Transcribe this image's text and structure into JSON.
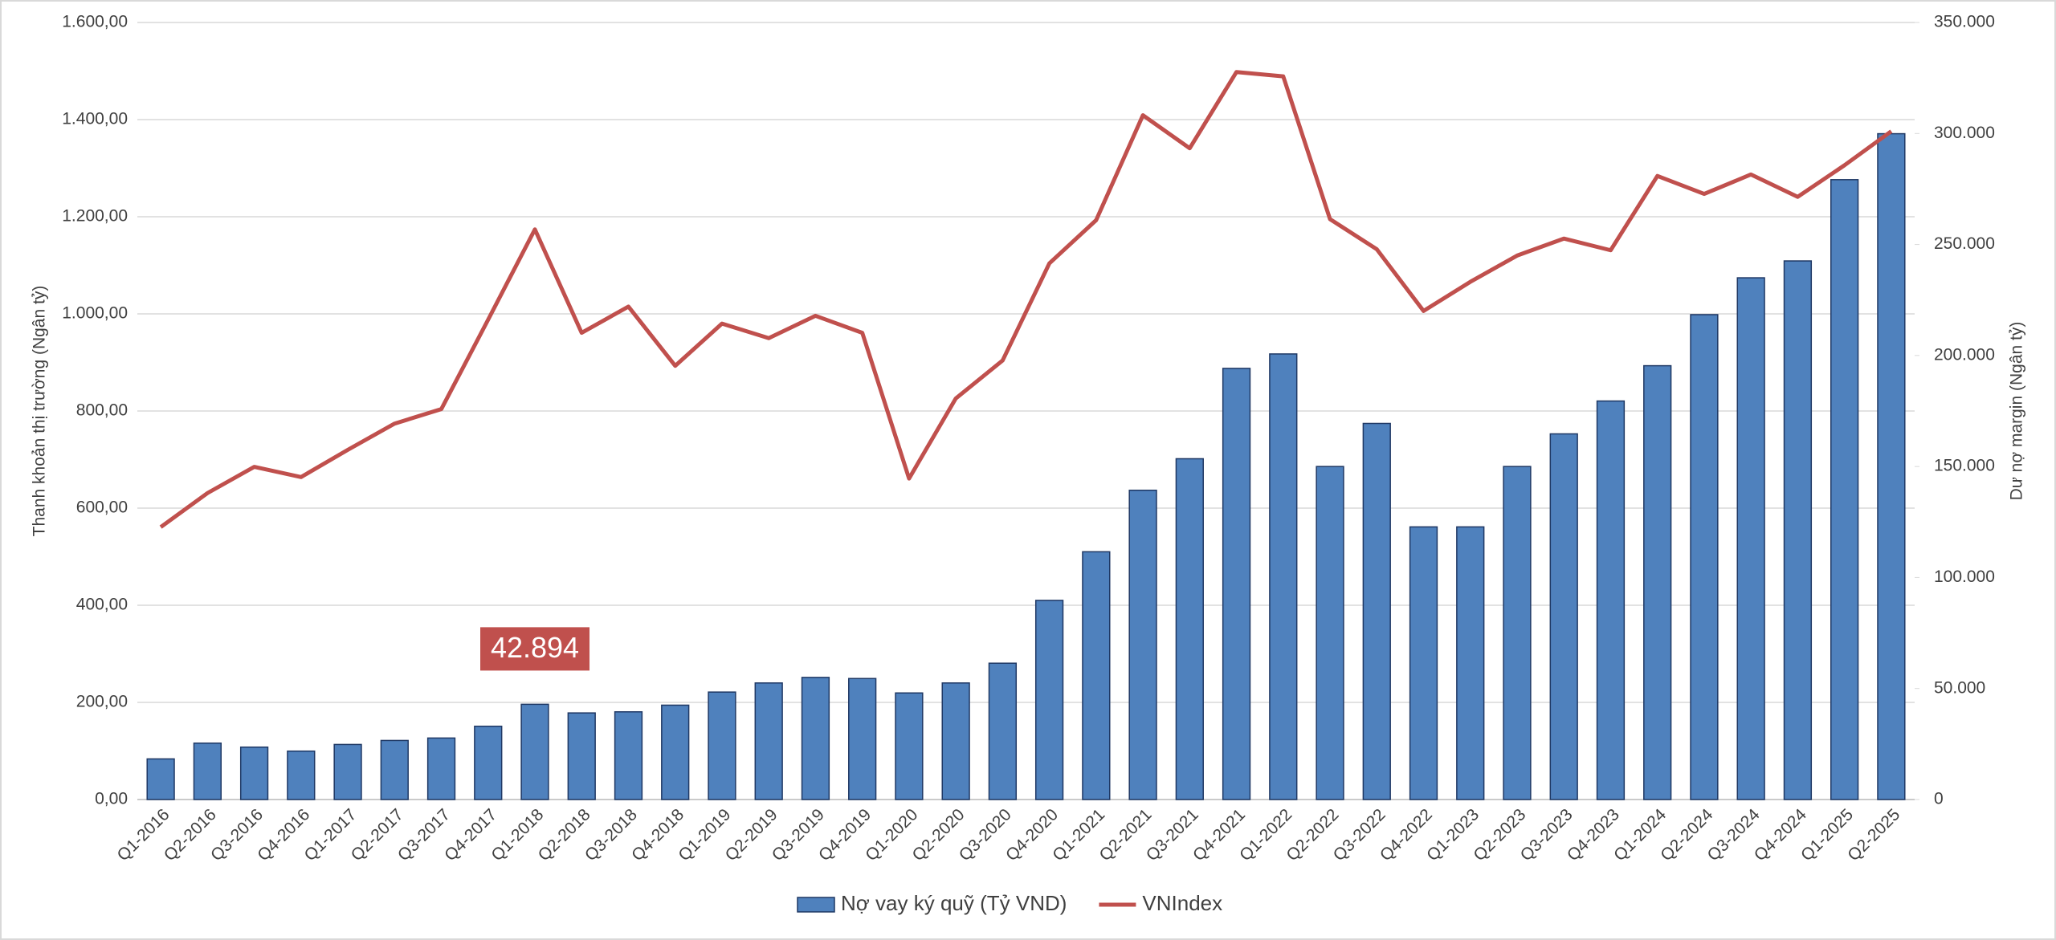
{
  "chart_data": {
    "type": "combo",
    "categories": [
      "Q1-2016",
      "Q2-2016",
      "Q3-2016",
      "Q4-2016",
      "Q1-2017",
      "Q2-2017",
      "Q3-2017",
      "Q4-2017",
      "Q1-2018",
      "Q2-2018",
      "Q3-2018",
      "Q4-2018",
      "Q1-2019",
      "Q2-2019",
      "Q3-2019",
      "Q4-2019",
      "Q1-2020",
      "Q2-2020",
      "Q3-2020",
      "Q4-2020",
      "Q1-2021",
      "Q2-2021",
      "Q3-2021",
      "Q4-2021",
      "Q1-2022",
      "Q2-2022",
      "Q3-2022",
      "Q4-2022",
      "Q1-2023",
      "Q2-2023",
      "Q3-2023",
      "Q4-2023",
      "Q1-2024",
      "Q2-2024",
      "Q3-2024",
      "Q4-2024",
      "Q1-2025",
      "Q2-2025"
    ],
    "series": [
      {
        "name": "Nợ vay ký quỹ (Tỷ VND)",
        "type": "bar",
        "axis": "y2",
        "color": "#4f81bd",
        "values": [
          18300,
          25400,
          23600,
          21800,
          24800,
          26600,
          27700,
          33000,
          42894,
          39000,
          39500,
          42500,
          48400,
          52500,
          55000,
          54500,
          48000,
          52500,
          61400,
          89700,
          111600,
          139300,
          153500,
          194200,
          200700,
          150000,
          169400,
          122800,
          122800,
          150000,
          164700,
          179500,
          195400,
          218400,
          235000,
          242600,
          279200,
          299900
        ],
        "value_labels": [
          null,
          null,
          null,
          null,
          null,
          null,
          null,
          null,
          "42.894",
          null,
          null,
          null,
          null,
          null,
          null,
          null,
          null,
          null,
          null,
          null,
          null,
          null,
          null,
          null,
          null,
          null,
          null,
          null,
          null,
          null,
          null,
          null,
          null,
          null,
          null,
          null,
          null,
          null
        ]
      },
      {
        "name": "VNIndex",
        "type": "line",
        "axis": "y",
        "color": "#c0504d",
        "values": [
          561,
          631,
          685,
          664,
          720,
          774,
          804,
          988,
          1174,
          961,
          1015,
          893,
          980,
          950,
          996,
          961,
          661,
          826,
          904,
          1104,
          1193,
          1409,
          1341,
          1498,
          1489,
          1195,
          1133,
          1006,
          1066,
          1120,
          1155,
          1131,
          1284,
          1247,
          1287,
          1241,
          1306,
          1376
        ]
      }
    ],
    "y_label": "Thanh khoản thị trường (Ngân tỷ)",
    "y2_label": "Dư nợ margin (Ngân tỷ)",
    "ylim": [
      0,
      1600
    ],
    "yticks": [
      {
        "value": 0,
        "label": "0,00"
      },
      {
        "value": 200,
        "label": "200,00"
      },
      {
        "value": 400,
        "label": "400,00"
      },
      {
        "value": 600,
        "label": "600,00"
      },
      {
        "value": 800,
        "label": "800,00"
      },
      {
        "value": 1000,
        "label": "1.000,00"
      },
      {
        "value": 1200,
        "label": "1.200,00"
      },
      {
        "value": 1400,
        "label": "1.400,00"
      },
      {
        "value": 1600,
        "label": "1.600,00"
      }
    ],
    "y2lim": [
      0,
      350000
    ],
    "y2ticks": [
      0,
      {
        "value": 50000,
        "label": "50.000"
      },
      {
        "value": 100000,
        "label": "100.000"
      },
      {
        "value": 150000,
        "label": "150.000"
      },
      {
        "value": 200000,
        "label": "200.000"
      },
      {
        "value": 250000,
        "label": "250.000"
      },
      {
        "value": 300000,
        "label": "300.000"
      },
      {
        "value": 350000,
        "label": "350.000"
      }
    ],
    "grid": true,
    "legend": "bottom"
  }
}
